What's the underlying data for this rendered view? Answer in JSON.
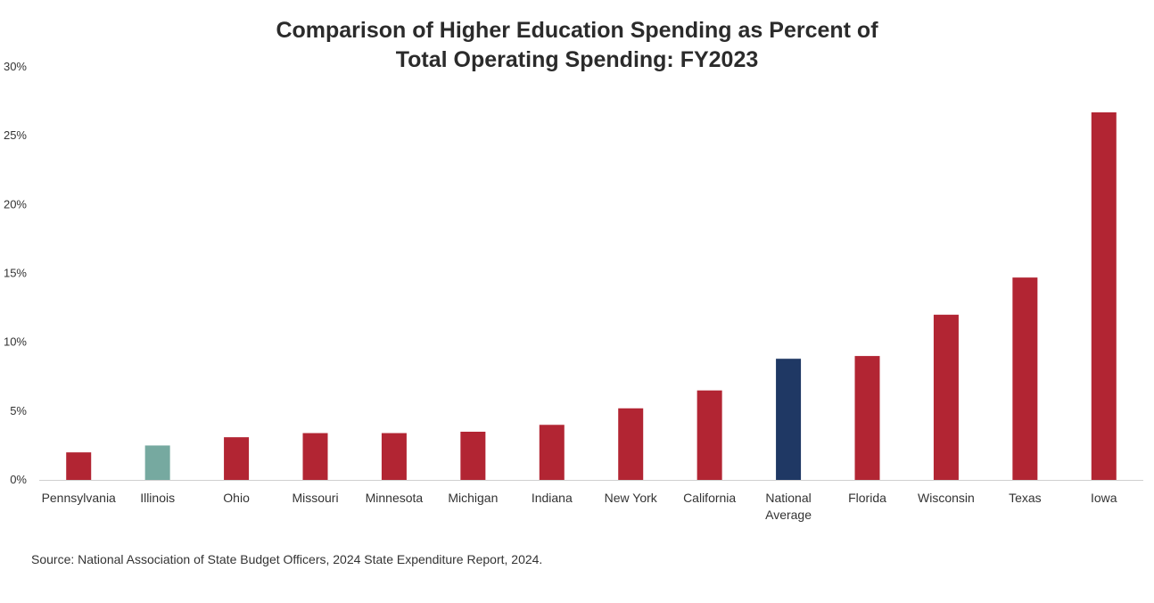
{
  "chart_data": {
    "type": "bar",
    "title_lines": [
      "Comparison of Higher Education Spending as Percent of",
      "Total Operating Spending: FY2023"
    ],
    "categories": [
      [
        "Pennsylvania"
      ],
      [
        "Illinois"
      ],
      [
        "Ohio"
      ],
      [
        "Missouri"
      ],
      [
        "Minnesota"
      ],
      [
        "Michigan"
      ],
      [
        "Indiana"
      ],
      [
        "New York"
      ],
      [
        "California"
      ],
      [
        "National",
        "Average"
      ],
      [
        "Florida"
      ],
      [
        "Wisconsin"
      ],
      [
        "Texas"
      ],
      [
        "Iowa"
      ]
    ],
    "values": [
      2.0,
      2.5,
      3.1,
      3.4,
      3.4,
      3.5,
      4.0,
      5.2,
      6.5,
      8.8,
      9.0,
      12.0,
      14.7,
      26.7
    ],
    "colors": [
      "#b22533",
      "#76a9a0",
      "#b22533",
      "#b22533",
      "#b22533",
      "#b22533",
      "#b22533",
      "#b22533",
      "#b22533",
      "#1f3864",
      "#b22533",
      "#b22533",
      "#b22533",
      "#b22533"
    ],
    "yticks": [
      0,
      5,
      10,
      15,
      20,
      25,
      30
    ],
    "ytick_labels": [
      "0%",
      "5%",
      "10%",
      "15%",
      "20%",
      "25%",
      "30%"
    ],
    "ylim": [
      0,
      30
    ],
    "grid": false,
    "legend": "none"
  },
  "source": "Source: National Association of State Budget Officers, 2024 State Expenditure Report, 2024."
}
